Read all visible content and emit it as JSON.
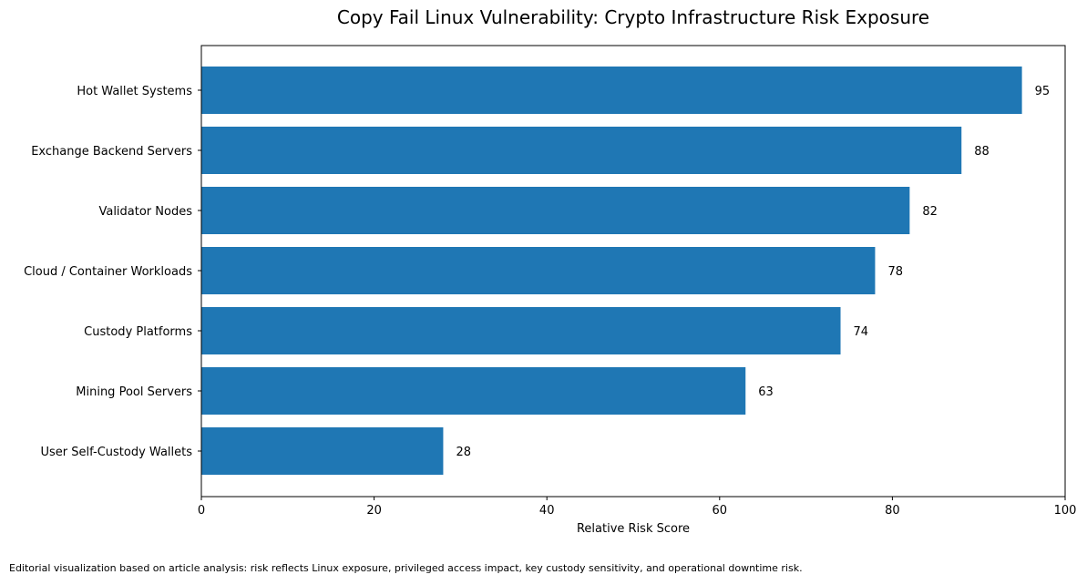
{
  "chart_data": {
    "type": "bar",
    "orientation": "horizontal",
    "title": "Copy Fail Linux Vulnerability: Crypto Infrastructure Risk Exposure",
    "xlabel": "Relative Risk Score",
    "ylabel": "",
    "categories": [
      "Hot Wallet Systems",
      "Exchange Backend Servers",
      "Validator Nodes",
      "Cloud / Container Workloads",
      "Custody Platforms",
      "Mining Pool Servers",
      "User Self-Custody Wallets"
    ],
    "values": [
      95,
      88,
      82,
      78,
      74,
      63,
      28
    ],
    "xlim": [
      0,
      100
    ],
    "xticks": [
      0,
      20,
      40,
      60,
      80,
      100
    ],
    "bar_color": "#1f77b4",
    "grid": false,
    "data_labels": true
  },
  "footnote": "Editorial visualization based on article analysis: risk reflects Linux exposure, privileged access impact, key custody sensitivity, and operational downtime risk."
}
